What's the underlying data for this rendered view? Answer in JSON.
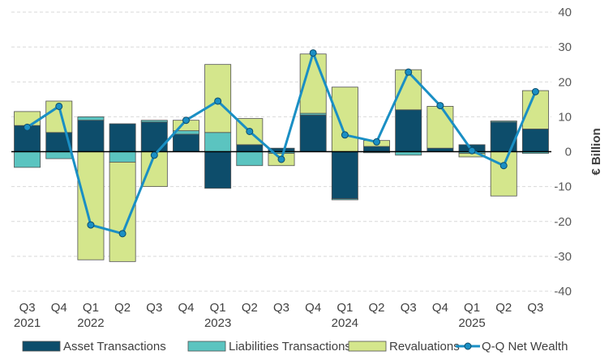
{
  "chart_data": {
    "type": "bar",
    "stacked": true,
    "title": "",
    "xlabel": "",
    "ylabel": "€ Billion",
    "ylim": [
      -40,
      40
    ],
    "yticks": [
      -40,
      -30,
      -20,
      -10,
      0,
      10,
      20,
      30,
      40
    ],
    "grid": true,
    "legend_position": "bottom",
    "categories": [
      "Q3",
      "Q4",
      "Q1",
      "Q2",
      "Q3",
      "Q4",
      "Q1",
      "Q2",
      "Q3",
      "Q4",
      "Q1",
      "Q2",
      "Q3",
      "Q4",
      "Q1",
      "Q2",
      "Q3"
    ],
    "year_labels": [
      {
        "index": 0,
        "label": "2021"
      },
      {
        "index": 2,
        "label": "2022"
      },
      {
        "index": 6,
        "label": "2023"
      },
      {
        "index": 10,
        "label": "2024"
      },
      {
        "index": 14,
        "label": "2025"
      }
    ],
    "series": [
      {
        "name": "Asset Transactions",
        "kind": "bar",
        "color": "#0d4d6b",
        "values": [
          7.5,
          5.5,
          9.0,
          8.0,
          8.5,
          5.0,
          -10.5,
          2.0,
          1.0,
          10.5,
          -13.5,
          1.5,
          12.0,
          1.0,
          2.0,
          8.5,
          6.5
        ]
      },
      {
        "name": "Liabilities Transactions",
        "kind": "bar",
        "color": "#5bc4c0",
        "values": [
          -4.5,
          -2.0,
          1.0,
          -3.0,
          0.5,
          1.0,
          5.5,
          -4.0,
          -0.5,
          0.5,
          -0.3,
          -0.3,
          -1.0,
          0.0,
          -0.5,
          0.3,
          -0.5
        ]
      },
      {
        "name": "Revaluations",
        "kind": "bar",
        "color": "#d4e68c",
        "values": [
          4.0,
          9.0,
          -31.0,
          -28.5,
          -10.0,
          3.0,
          19.5,
          7.5,
          -3.5,
          17.0,
          18.5,
          1.7,
          11.5,
          12.0,
          -1.0,
          -12.7,
          11.0
        ]
      },
      {
        "name": "Q-Q Net Wealth",
        "kind": "line",
        "color": "#1a8fc4",
        "values": [
          7.0,
          13.0,
          -21.0,
          -23.5,
          -1.0,
          9.0,
          14.5,
          5.8,
          -2.2,
          28.3,
          4.8,
          2.8,
          22.8,
          13.2,
          0.3,
          -4.0,
          17.2
        ]
      }
    ]
  }
}
